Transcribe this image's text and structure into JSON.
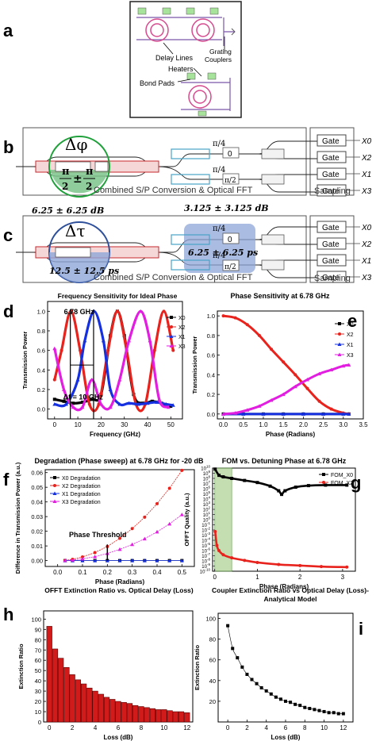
{
  "panels": {
    "a": {
      "letter": "a",
      "labels": {
        "delay_lines": "Delay Lines",
        "grating": "Grating",
        "couplers": "Couplers",
        "heaters": "Heaters",
        "bond_pads": "Bond Pads"
      }
    },
    "b": {
      "letter": "b",
      "symbol": "Δφ",
      "pi": "π",
      "two": "2",
      "pm": "±",
      "pi4": "π/4",
      "zero": "0",
      "pi2": "π/2",
      "caption": "Combined S/P Conversion & Optical FFT",
      "gate": "Gate",
      "sampling": "Sampling",
      "outputs": [
        "X0",
        "X2",
        "X1",
        "X3"
      ]
    },
    "c": {
      "letter": "c",
      "symbol": "Δτ",
      "loss1": "6.25 ± 6.25 dB",
      "loss2": "3.125 ± 3.125 dB",
      "delay1": "12.5 ± 12.5 ps",
      "delay2": "6.25 ± 6.25 ps",
      "pi4": "π/4",
      "zero": "0",
      "pi2": "π/2",
      "caption": "Combined S/P Conversion & Optical FFT",
      "gate": "Gate",
      "sampling": "Sampling",
      "outputs": [
        "X0",
        "X2",
        "X1",
        "X3"
      ]
    },
    "d": {
      "letter": "d",
      "annotation_freq": "6.78 GHz",
      "annotation_df": "Δf = 10 GHz"
    },
    "e": {
      "letter": "e"
    },
    "f": {
      "letter": "f",
      "annotation": "Phase Threshold"
    },
    "g": {
      "letter": "g"
    },
    "h": {
      "letter": "h"
    },
    "i": {
      "letter": "i"
    }
  },
  "chart_data": [
    {
      "id": "d",
      "type": "line",
      "title": "Frequency Sensitivity for Ideal Phase",
      "xlabel": "Frequency (GHz)",
      "ylabel": "Transmission Power",
      "xlim": [
        -3,
        55
      ],
      "ylim": [
        -0.1,
        1.1
      ],
      "xticks": [
        0,
        10,
        20,
        30,
        40,
        50
      ],
      "yticks": [
        0.0,
        0.2,
        0.4,
        0.6,
        0.8,
        1.0
      ],
      "legend_position": "right",
      "series": [
        {
          "name": "X0",
          "color": "#000000",
          "x": [
            0,
            4,
            8,
            12,
            16,
            20,
            24,
            27,
            30,
            34,
            38,
            42,
            46,
            50
          ],
          "y": [
            0.1,
            0.08,
            0.06,
            0.07,
            0.1,
            0.15,
            0.75,
            1.0,
            0.75,
            0.15,
            0.06,
            0.08,
            0.06,
            0.03
          ]
        },
        {
          "name": "X2",
          "color": "#e8221c",
          "x": [
            0,
            3,
            7,
            11,
            15,
            19,
            23,
            27,
            31,
            35,
            39,
            43,
            47,
            51
          ],
          "y": [
            0.3,
            0.6,
            1.0,
            0.6,
            0.05,
            0.05,
            0.6,
            1.0,
            0.6,
            0.05,
            0.05,
            0.6,
            1.0,
            0.6
          ]
        },
        {
          "name": "X1",
          "color": "#1430e0",
          "x": [
            0,
            5,
            10,
            13,
            17,
            21,
            24,
            28,
            32,
            36,
            40,
            44,
            48,
            51
          ],
          "y": [
            0.05,
            0.05,
            0.3,
            0.7,
            1.0,
            0.7,
            0.2,
            0.05,
            0.06,
            0.05,
            0.06,
            0.07,
            0.05,
            0.04
          ]
        },
        {
          "name": "X3",
          "color": "#e21ee0",
          "x": [
            0,
            4,
            8,
            12,
            16,
            20,
            24,
            28,
            32,
            37,
            41,
            45,
            49
          ],
          "y": [
            0.62,
            0.2,
            0.02,
            0.02,
            0.3,
            0.05,
            0.02,
            0.3,
            0.7,
            1.0,
            0.7,
            0.1,
            0.02
          ]
        }
      ],
      "annotations": [
        "6.78 GHz",
        "Δf = 10 GHz"
      ]
    },
    {
      "id": "e",
      "type": "scatter",
      "title": "Phase Sensitivity at 6.78 GHz",
      "xlabel": "Phase (Radians)",
      "ylabel": "Transmission Power",
      "xlim": [
        -0.15,
        3.5
      ],
      "ylim": [
        -0.05,
        1.05
      ],
      "xticks": [
        0.0,
        0.5,
        1.0,
        1.5,
        2.0,
        2.5,
        3.0,
        3.5
      ],
      "yticks": [
        0.0,
        0.2,
        0.4,
        0.6,
        0.8,
        1.0
      ],
      "legend_position": "top-right",
      "series": [
        {
          "name": "X0",
          "color": "#000000",
          "x": [
            0,
            0.5,
            1,
            1.5,
            2,
            2.5,
            3,
            3.14
          ],
          "y": [
            0,
            0,
            0,
            0,
            0,
            0,
            0,
            0
          ]
        },
        {
          "name": "X2",
          "color": "#e8221c",
          "x": [
            0,
            0.3,
            0.6,
            0.9,
            1.2,
            1.5,
            1.8,
            2.1,
            2.4,
            2.7,
            3.0,
            3.14
          ],
          "y": [
            1.0,
            0.98,
            0.91,
            0.8,
            0.66,
            0.53,
            0.4,
            0.26,
            0.13,
            0.05,
            0.01,
            0.0
          ]
        },
        {
          "name": "X1",
          "color": "#1430e0",
          "x": [
            0,
            0.5,
            1,
            1.5,
            2,
            2.5,
            3,
            3.14
          ],
          "y": [
            0,
            0,
            0,
            0,
            0,
            0,
            0,
            0
          ]
        },
        {
          "name": "X3",
          "color": "#e21ee0",
          "x": [
            0,
            0.3,
            0.6,
            0.9,
            1.2,
            1.5,
            1.8,
            2.1,
            2.4,
            2.7,
            3.0,
            3.14
          ],
          "y": [
            0,
            0.01,
            0.04,
            0.08,
            0.14,
            0.2,
            0.28,
            0.35,
            0.41,
            0.45,
            0.49,
            0.5
          ]
        }
      ]
    },
    {
      "id": "f",
      "type": "line",
      "title": "Degradation (Phase sweep) at 6.78 GHz for -20 dB",
      "xlabel": "Phase (Radians)",
      "ylabel": "Difference in Transmission Power (a.u.)",
      "xlim": [
        -0.05,
        0.55
      ],
      "ylim": [
        -0.004,
        0.062
      ],
      "xticks": [
        0.0,
        0.1,
        0.2,
        0.3,
        0.4,
        0.5
      ],
      "yticks": [
        0.0,
        0.01,
        0.02,
        0.03,
        0.04,
        0.05,
        0.06
      ],
      "legend_position": "top-left",
      "series": [
        {
          "name": "X0 Degradation",
          "color": "#000000",
          "x": [
            0.03,
            0.06,
            0.1,
            0.15,
            0.2,
            0.25,
            0.3,
            0.35,
            0.4,
            0.45,
            0.5
          ],
          "y": [
            0,
            0,
            0,
            0,
            0,
            0,
            0,
            0,
            0,
            0,
            0
          ]
        },
        {
          "name": "X2 Degradation",
          "color": "#e8221c",
          "x": [
            0.03,
            0.06,
            0.1,
            0.15,
            0.2,
            0.25,
            0.3,
            0.35,
            0.4,
            0.45,
            0.5
          ],
          "y": [
            0.0001,
            0.0009,
            0.0025,
            0.0055,
            0.0096,
            0.0152,
            0.0218,
            0.0296,
            0.0388,
            0.0493,
            0.0615
          ]
        },
        {
          "name": "X1 Degradation",
          "color": "#1430e0",
          "x": [
            0.03,
            0.06,
            0.1,
            0.15,
            0.2,
            0.25,
            0.3,
            0.35,
            0.4,
            0.45,
            0.5
          ],
          "y": [
            0,
            0,
            0,
            0,
            0,
            0,
            0,
            0,
            0,
            0,
            0
          ]
        },
        {
          "name": "X3 Degradation",
          "color": "#e21ee0",
          "x": [
            0.03,
            0.06,
            0.1,
            0.15,
            0.2,
            0.25,
            0.3,
            0.35,
            0.4,
            0.45,
            0.5
          ],
          "y": [
            0.0001,
            0.0004,
            0.0012,
            0.0027,
            0.0049,
            0.0077,
            0.011,
            0.0149,
            0.0196,
            0.025,
            0.0314
          ]
        }
      ],
      "annotations": [
        "Phase Threshold"
      ]
    },
    {
      "id": "g",
      "type": "line",
      "title": "FOM vs. Detuning Phase at 6.78 GHz",
      "xlabel": "Phase (Radians)",
      "ylabel": "OFFT Quality (a.u.)",
      "scale": "log",
      "xlim": [
        -0.05,
        3.3
      ],
      "ylim_exp": [
        -10,
        10
      ],
      "xticks": [
        0,
        1,
        2,
        3
      ],
      "ytick_exponents": [
        -10,
        -9,
        -8,
        -7,
        -6,
        -5,
        -4,
        -3,
        -2,
        -1,
        0,
        1,
        2,
        3,
        4,
        5,
        6,
        7,
        8,
        9,
        10
      ],
      "shaded_region": [
        0,
        0.4
      ],
      "legend_position": "top-right",
      "series": [
        {
          "name": "FOM_X0",
          "color": "#000000",
          "x": [
            0.01,
            0.1,
            0.2,
            0.4,
            0.7,
            1.0,
            1.3,
            1.5,
            1.57,
            1.65,
            1.9,
            2.2,
            2.6,
            3.1
          ],
          "log10_y": [
            9.8,
            8.6,
            8.3,
            8.0,
            7.6,
            7.2,
            6.5,
            5.6,
            4.9,
            5.6,
            6.3,
            6.6,
            6.7,
            6.7
          ]
        },
        {
          "name": "FOM_X2",
          "color": "#e8221c",
          "x": [
            0.01,
            0.05,
            0.1,
            0.2,
            0.4,
            0.7,
            1.0,
            1.5,
            2.0,
            2.5,
            3.1
          ],
          "log10_y": [
            -2.3,
            -5.0,
            -6.0,
            -6.8,
            -7.4,
            -7.9,
            -8.3,
            -8.7,
            -8.9,
            -9.1,
            -9.2
          ]
        }
      ]
    },
    {
      "id": "h",
      "type": "bar",
      "title": "OFFT Extinction Ratio vs. Optical Delay (Loss)",
      "xlabel": "Loss (dB)",
      "ylabel": "Extinction Ratio",
      "xlim": [
        -0.5,
        12.5
      ],
      "ylim": [
        0,
        108
      ],
      "xticks": [
        0,
        2,
        4,
        6,
        8,
        10,
        12
      ],
      "yticks": [
        0,
        10,
        20,
        30,
        40,
        50,
        60,
        70,
        80,
        90,
        100
      ],
      "x": [
        0,
        0.5,
        1,
        1.5,
        2,
        2.5,
        3,
        3.5,
        4,
        4.5,
        5,
        5.5,
        6,
        6.5,
        7,
        7.5,
        8,
        8.5,
        9,
        9.5,
        10,
        10.5,
        11,
        11.5,
        12
      ],
      "values": [
        93,
        71,
        62,
        53,
        46,
        41,
        37,
        33,
        30,
        27,
        24,
        22,
        20,
        19,
        18,
        16,
        15,
        14,
        13,
        12,
        12,
        11,
        10,
        10,
        9
      ]
    },
    {
      "id": "i",
      "type": "scatter",
      "title": "Coupler Extinction Ratio vs Optical Delay (Loss)-Analytical Model",
      "xlabel": "Loss (dB)",
      "ylabel": "Extinction Ratio",
      "xlim": [
        -1,
        13
      ],
      "ylim": [
        0,
        105
      ],
      "xticks": [
        0,
        2,
        4,
        6,
        8,
        10,
        12
      ],
      "yticks": [
        20,
        40,
        60,
        80,
        100
      ],
      "x": [
        0,
        0.5,
        1,
        1.5,
        2,
        2.5,
        3,
        3.5,
        4,
        4.5,
        5,
        5.5,
        6,
        6.5,
        7,
        7.5,
        8,
        8.5,
        9,
        9.5,
        10,
        10.5,
        11,
        11.5,
        12
      ],
      "values": [
        93,
        71,
        62,
        53,
        46,
        41,
        37,
        33,
        30,
        27,
        24,
        22,
        20,
        19,
        17,
        16,
        14,
        13,
        12,
        11,
        10,
        9,
        9,
        8,
        8
      ]
    }
  ]
}
